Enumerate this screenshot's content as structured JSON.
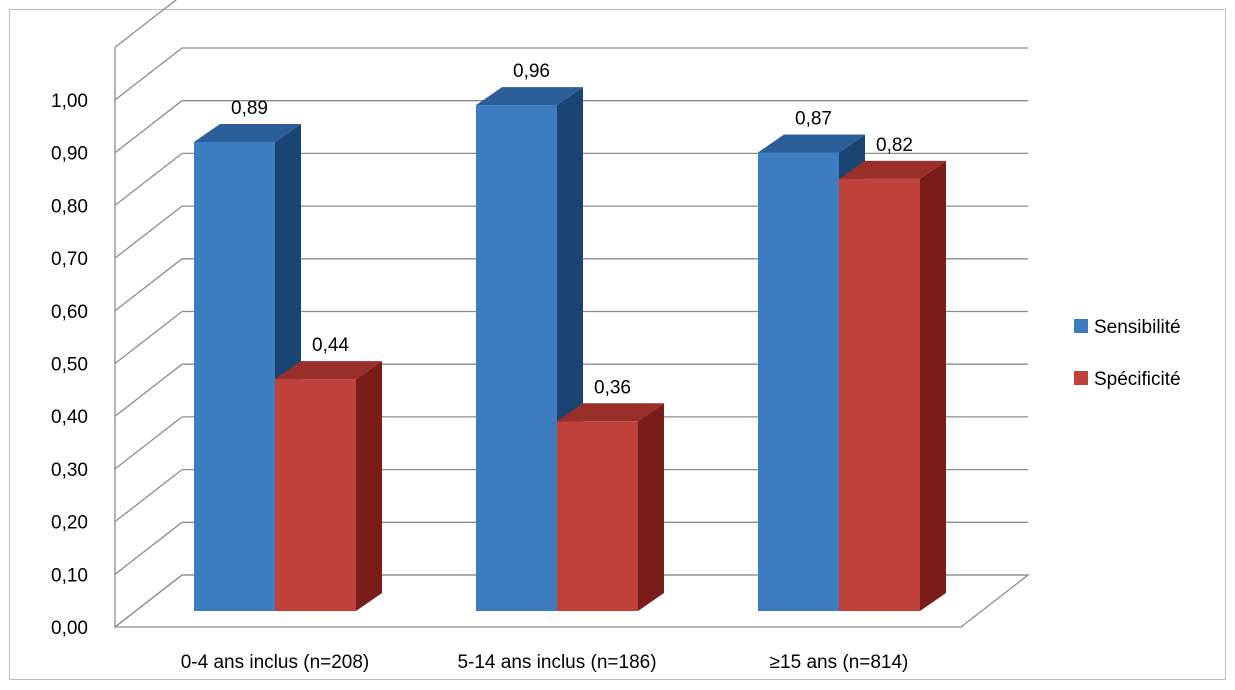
{
  "chart_data": {
    "type": "bar",
    "categories": [
      "0-4 ans inclus (n=208)",
      "5-14 ans inclus (n=186)",
      "≥15 ans (n=814)"
    ],
    "series": [
      {
        "name": "Sensibilité",
        "values": [
          0.89,
          0.96,
          0.87
        ],
        "labels": [
          "0,89",
          "0,96",
          "0,87"
        ]
      },
      {
        "name": "Spécificité",
        "values": [
          0.44,
          0.36,
          0.82
        ],
        "labels": [
          "0,44",
          "0,36",
          "0,82"
        ]
      }
    ],
    "yticks": [
      "0,00",
      "0,10",
      "0,20",
      "0,30",
      "0,40",
      "0,50",
      "0,60",
      "0,70",
      "0,80",
      "0,90",
      "1,00"
    ],
    "ylim": [
      0,
      1.1
    ],
    "grid": true,
    "legend_position": "right",
    "style": "3d-clustered-column",
    "colors": {
      "Sensibilité": {
        "front": "#3e7cc0",
        "top": "#2c5f99",
        "side": "#1a4573"
      },
      "Spécificité": {
        "front": "#c0403a",
        "top": "#982f2b",
        "side": "#7a1d1a"
      },
      "grid": "#8c8c8c"
    }
  }
}
